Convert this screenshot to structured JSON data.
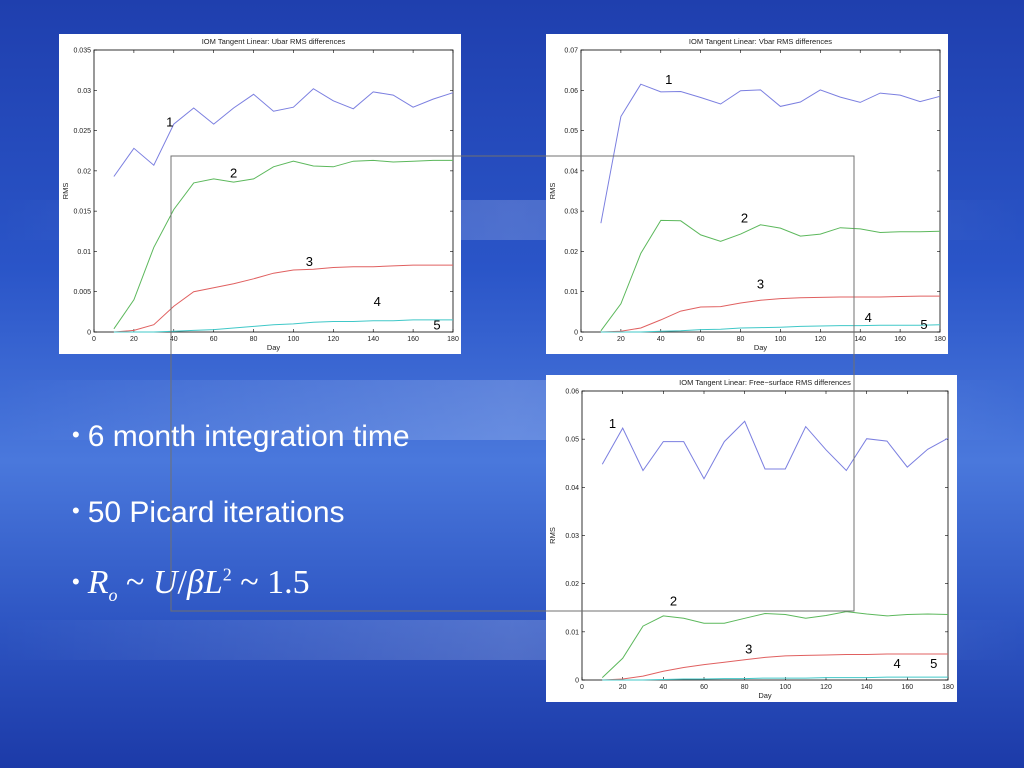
{
  "bullets": [
    {
      "text": "6 month integration time"
    },
    {
      "text": "50 Picard iterations"
    },
    {
      "formula": {
        "r": "R",
        "o": "o",
        "sim1": "~",
        "u": "U",
        "slash": "/",
        "beta": "β",
        "l": "L",
        "exp": "2",
        "sim2": "~",
        "val": "1.5"
      }
    }
  ],
  "colors": {
    "series1": "#7b7fe0",
    "series2": "#5cb85c",
    "series3": "#e06060",
    "series4": "#40c8c8",
    "series5": "#40c8c8",
    "zoom_box": "#707070"
  },
  "chart_data": [
    {
      "type": "line",
      "title": "IOM Tangent Linear: Ubar RMS differences",
      "xlabel": "Day",
      "ylabel": "RMS",
      "xlim": [
        0,
        180
      ],
      "ylim": [
        0,
        0.035
      ],
      "xticks": [
        0,
        20,
        40,
        60,
        80,
        100,
        120,
        140,
        160,
        180
      ],
      "xtick_labels": [
        "0",
        "20",
        "40",
        "60",
        "80",
        "100",
        "120",
        "140",
        "160",
        "180"
      ],
      "yticks": [
        0,
        0.005,
        0.01,
        0.015,
        0.02,
        0.025,
        0.03,
        0.035
      ],
      "ytick_labels": [
        "0",
        "0.005",
        "0.01",
        "0.015",
        "0.02",
        "0.025",
        "0.03",
        "0.035"
      ],
      "x": [
        10,
        20,
        30,
        40,
        50,
        60,
        70,
        80,
        90,
        100,
        110,
        120,
        130,
        140,
        150,
        160,
        170,
        180
      ],
      "series": [
        {
          "values": [
            0.0193,
            0.0228,
            0.0207,
            0.0258,
            0.0278,
            0.0258,
            0.0278,
            0.0295,
            0.0274,
            0.0279,
            0.0302,
            0.0287,
            0.0277,
            0.0298,
            0.0294,
            0.0279,
            0.0289,
            0.0297
          ],
          "color_key": "series1"
        },
        {
          "values": [
            0.0004,
            0.004,
            0.0105,
            0.0152,
            0.0185,
            0.019,
            0.0186,
            0.019,
            0.0205,
            0.0212,
            0.0206,
            0.0205,
            0.0212,
            0.0213,
            0.0211,
            0.0212,
            0.0213,
            0.0213
          ],
          "color_key": "series2"
        },
        {
          "values": [
            0,
            0.0002,
            0.0009,
            0.0032,
            0.005,
            0.0055,
            0.006,
            0.0066,
            0.0073,
            0.0077,
            0.0078,
            0.008,
            0.0081,
            0.0081,
            0.0082,
            0.0083,
            0.0083,
            0.0083
          ],
          "color_key": "series3"
        },
        {
          "values": [
            0,
            0,
            0,
            0.0001,
            0.0002,
            0.0003,
            0.0005,
            0.0007,
            0.0009,
            0.001,
            0.0012,
            0.0013,
            0.0013,
            0.0014,
            0.0014,
            0.0015,
            0.0015,
            0.0015
          ],
          "color_key": "series4"
        }
      ],
      "curve_labels": [
        {
          "text": "1",
          "x": 38,
          "y": 0.0255
        },
        {
          "text": "2",
          "x": 70,
          "y": 0.0192
        },
        {
          "text": "3",
          "x": 108,
          "y": 0.0082
        },
        {
          "text": "4",
          "x": 142,
          "y": 0.0032
        },
        {
          "text": "5",
          "x": 172,
          "y": 0.0003
        }
      ]
    },
    {
      "type": "line",
      "title": "IOM Tangent Linear: Vbar RMS differences",
      "xlabel": "Day",
      "ylabel": "RMS",
      "xlim": [
        0,
        180
      ],
      "ylim": [
        0,
        0.07
      ],
      "xticks": [
        0,
        20,
        40,
        60,
        80,
        100,
        120,
        140,
        160,
        180
      ],
      "xtick_labels": [
        "0",
        "20",
        "40",
        "60",
        "80",
        "100",
        "120",
        "140",
        "160",
        "180"
      ],
      "yticks": [
        0,
        0.01,
        0.02,
        0.03,
        0.04,
        0.05,
        0.06,
        0.07
      ],
      "ytick_labels": [
        "0",
        "0.01",
        "0.02",
        "0.03",
        "0.04",
        "0.05",
        "0.06",
        "0.07"
      ],
      "x": [
        10,
        20,
        30,
        40,
        50,
        60,
        70,
        80,
        90,
        100,
        110,
        120,
        130,
        140,
        150,
        160,
        170,
        180
      ],
      "series": [
        {
          "values": [
            0.027,
            0.0535,
            0.0615,
            0.0596,
            0.0597,
            0.0582,
            0.0566,
            0.0599,
            0.0601,
            0.056,
            0.0571,
            0.0601,
            0.0583,
            0.057,
            0.0593,
            0.0588,
            0.0572,
            0.0585
          ],
          "color_key": "series1"
        },
        {
          "values": [
            0.0003,
            0.007,
            0.0195,
            0.0277,
            0.0276,
            0.0241,
            0.0225,
            0.0243,
            0.0266,
            0.0258,
            0.0238,
            0.0243,
            0.0259,
            0.0256,
            0.0247,
            0.0249,
            0.0249,
            0.025
          ],
          "color_key": "series2"
        },
        {
          "values": [
            0,
            0.0002,
            0.001,
            0.003,
            0.0052,
            0.0062,
            0.0063,
            0.0072,
            0.0079,
            0.0083,
            0.0085,
            0.0086,
            0.0087,
            0.0087,
            0.0087,
            0.0088,
            0.0089,
            0.0089
          ],
          "color_key": "series3"
        },
        {
          "values": [
            0,
            0,
            0,
            0.0002,
            0.0003,
            0.0006,
            0.0007,
            0.001,
            0.0011,
            0.0012,
            0.0014,
            0.0015,
            0.0016,
            0.0016,
            0.0017,
            0.0017,
            0.0017,
            0.0018
          ],
          "color_key": "series4"
        }
      ],
      "curve_labels": [
        {
          "text": "1",
          "x": 44,
          "y": 0.0615
        },
        {
          "text": "2",
          "x": 82,
          "y": 0.0272
        },
        {
          "text": "3",
          "x": 90,
          "y": 0.0108
        },
        {
          "text": "4",
          "x": 144,
          "y": 0.0025
        },
        {
          "text": "5",
          "x": 172,
          "y": 0.0007
        }
      ]
    },
    {
      "type": "line",
      "title": "IOM Tangent Linear: Free−surface RMS differences",
      "xlabel": "Day",
      "ylabel": "RMS",
      "xlim": [
        0,
        180
      ],
      "ylim": [
        0,
        0.06
      ],
      "xticks": [
        0,
        20,
        40,
        60,
        80,
        100,
        120,
        140,
        160,
        180
      ],
      "xtick_labels": [
        "0",
        "20",
        "40",
        "60",
        "80",
        "100",
        "120",
        "140",
        "160",
        "180"
      ],
      "yticks": [
        0,
        0.01,
        0.02,
        0.03,
        0.04,
        0.05,
        0.06
      ],
      "ytick_labels": [
        "0",
        "0.01",
        "0.02",
        "0.03",
        "0.04",
        "0.05",
        "0.06"
      ],
      "x": [
        10,
        20,
        30,
        40,
        50,
        60,
        70,
        80,
        90,
        100,
        110,
        120,
        130,
        140,
        150,
        160,
        170,
        180
      ],
      "series": [
        {
          "values": [
            0.0448,
            0.0523,
            0.0435,
            0.0495,
            0.0495,
            0.0418,
            0.0495,
            0.0537,
            0.0438,
            0.0438,
            0.0526,
            0.0478,
            0.0435,
            0.0501,
            0.0496,
            0.0442,
            0.0479,
            0.0502
          ],
          "color_key": "series1"
        },
        {
          "values": [
            0.0005,
            0.0045,
            0.0112,
            0.0133,
            0.0128,
            0.0118,
            0.0118,
            0.0128,
            0.0138,
            0.0136,
            0.0128,
            0.0134,
            0.0142,
            0.0137,
            0.0133,
            0.0136,
            0.0137,
            0.0136
          ],
          "color_key": "series2"
        },
        {
          "values": [
            0,
            0.0002,
            0.0008,
            0.0018,
            0.0026,
            0.0032,
            0.0037,
            0.0042,
            0.0047,
            0.005,
            0.0051,
            0.0052,
            0.0053,
            0.0053,
            0.0054,
            0.0054,
            0.0054,
            0.0054
          ],
          "color_key": "series3"
        },
        {
          "values": [
            0,
            0,
            0,
            0.0001,
            0.0002,
            0.0002,
            0.0003,
            0.0003,
            0.0004,
            0.0004,
            0.0004,
            0.0005,
            0.0005,
            0.0005,
            0.0006,
            0.0006,
            0.0006,
            0.0006
          ],
          "color_key": "series4"
        }
      ],
      "curve_labels": [
        {
          "text": "1",
          "x": 15,
          "y": 0.0523
        },
        {
          "text": "2",
          "x": 45,
          "y": 0.0155
        },
        {
          "text": "3",
          "x": 82,
          "y": 0.0055
        },
        {
          "text": "4",
          "x": 155,
          "y": 0.0025
        },
        {
          "text": "5",
          "x": 173,
          "y": 0.0025
        }
      ]
    }
  ]
}
